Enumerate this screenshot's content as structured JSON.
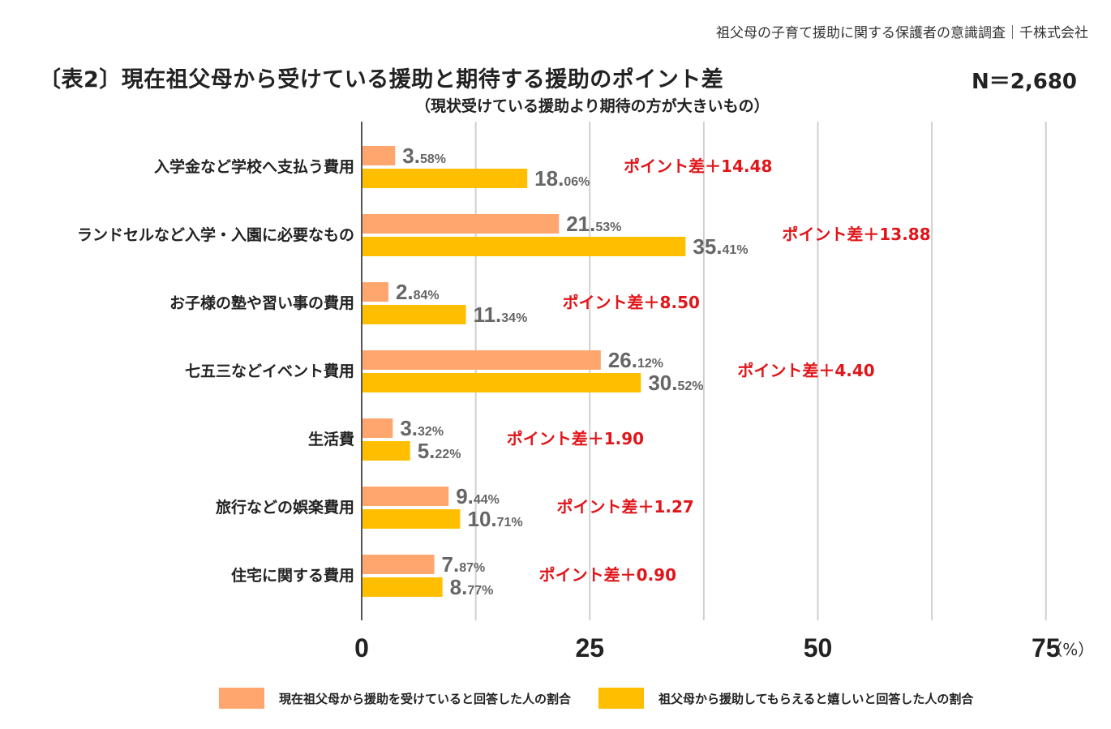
{
  "source": "祖父母の子育て援助に関する保護者の意識調査｜千株式会社",
  "title": "〔表2〕現在祖父母から受けている援助と期待する援助のポイント差",
  "subtitle": "（現状受けている援助より期待の方が大きいもの）",
  "n_label": "N＝2,680",
  "colors": {
    "current": "#FFA66F",
    "expected": "#FFBF00",
    "value_text": "#666666",
    "diff_text": "#E0161B",
    "grid": "#d0d0d0",
    "axis": "#555555"
  },
  "chart_data": {
    "type": "bar",
    "orientation": "horizontal",
    "categories": [
      "入学金など学校へ支払う費用",
      "ランドセルなど入学・入園に必要なもの",
      "お子様の塾や習い事の費用",
      "七五三などイベント費用",
      "生活費",
      "旅行などの娯楽費用",
      "住宅に関する費用"
    ],
    "series": [
      {
        "name": "現在祖父母から援助を受けていると回答した人の割合",
        "values": [
          3.58,
          21.53,
          2.84,
          26.12,
          3.32,
          9.44,
          7.87
        ]
      },
      {
        "name": "祖父母から援助してもらえると嬉しいと回答した人の割合",
        "values": [
          18.06,
          35.41,
          11.34,
          30.52,
          5.22,
          10.71,
          8.77
        ]
      }
    ],
    "point_diff_labels": [
      "ポイント差＋14.48",
      "ポイント差＋13.88",
      "ポイント差＋8.50",
      "ポイント差＋4.40",
      "ポイント差＋1.90",
      "ポイント差＋1.27",
      "ポイント差＋0.90"
    ],
    "xlim": [
      0,
      75
    ],
    "xticks": [
      0,
      25,
      50,
      75
    ],
    "x_unit": "（%）",
    "grid": true,
    "legend_position": "bottom"
  }
}
